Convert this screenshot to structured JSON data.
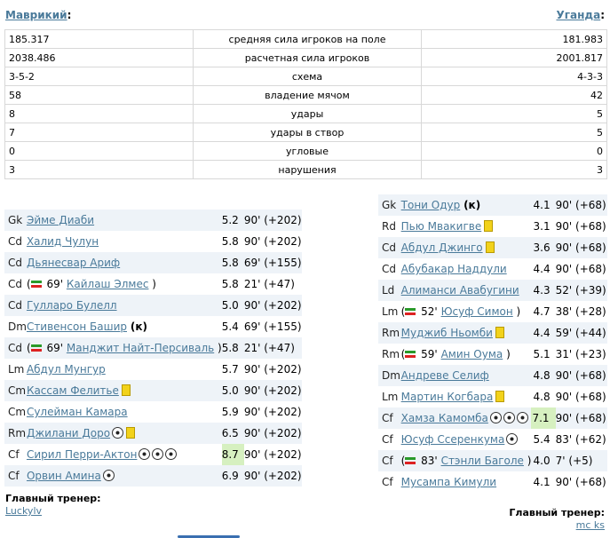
{
  "header": {
    "home_team": "Маврикий",
    "away_team": "Уганда",
    "colon": ":"
  },
  "stats": [
    {
      "home": "185.317",
      "label": "средняя сила игроков на поле",
      "away": "181.983"
    },
    {
      "home": "2038.486",
      "label": "расчетная сила игроков",
      "away": "2001.817"
    },
    {
      "home": "3-5-2",
      "label": "схема",
      "away": "4-3-3"
    },
    {
      "home": "58",
      "label": "владение мячом",
      "away": "42"
    },
    {
      "home": "8",
      "label": "удары",
      "away": "5"
    },
    {
      "home": "7",
      "label": "удары в створ",
      "away": "5"
    },
    {
      "home": "0",
      "label": "угловые",
      "away": "0"
    },
    {
      "home": "3",
      "label": "нарушения",
      "away": "3"
    }
  ],
  "home_lineup": [
    {
      "pos": "Gk",
      "name": "Эйме Диаби",
      "rating": "5.2",
      "minutes": "90' (+202)"
    },
    {
      "pos": "Cd",
      "name": "Халид Чулун",
      "rating": "5.8",
      "minutes": "90' (+202)"
    },
    {
      "pos": "Cd",
      "name": "Дьянесвар Ариф",
      "rating": "5.8",
      "minutes": "69' (+155)"
    },
    {
      "pos": "Cd",
      "sub_minute": "69'",
      "name": "Кайлаш Элмес",
      "rating": "5.8",
      "minutes": "21' (+47)"
    },
    {
      "pos": "Cd",
      "name": "Гулларо Булелл",
      "rating": "5.0",
      "minutes": "90' (+202)"
    },
    {
      "pos": "Dm",
      "name": "Стивенсон Башир",
      "captain": "(к)",
      "rating": "5.4",
      "minutes": "69' (+155)"
    },
    {
      "pos": "Cd",
      "sub_minute": "69'",
      "name": "Манджит Найт-Персиваль",
      "rating": "5.8",
      "minutes": "21' (+47)"
    },
    {
      "pos": "Lm",
      "name": "Абдул Мунгур",
      "rating": "5.7",
      "minutes": "90' (+202)"
    },
    {
      "pos": "Cm",
      "name": "Кассам Фелитье",
      "yellow": true,
      "rating": "5.0",
      "minutes": "90' (+202)"
    },
    {
      "pos": "Cm",
      "name": "Сулейман Камара",
      "rating": "5.9",
      "minutes": "90' (+202)"
    },
    {
      "pos": "Rm",
      "name": "Джилани Доро",
      "goals": 1,
      "yellow": true,
      "rating": "6.5",
      "minutes": "90' (+202)"
    },
    {
      "pos": "Cf",
      "name": "Сирил Перри-Актон",
      "goals": 3,
      "rating": "8.7",
      "highlight": true,
      "minutes": "90' (+202)"
    },
    {
      "pos": "Cf",
      "name": "Орвин Амина",
      "goals": 1,
      "rating": "6.9",
      "minutes": "90' (+202)"
    }
  ],
  "away_lineup": [
    {
      "pos": "Gk",
      "name": "Тони Одур",
      "captain": "(к)",
      "rating": "4.1",
      "minutes": "90' (+68)"
    },
    {
      "pos": "Rd",
      "name": "Пью Мвакигве",
      "yellow": true,
      "rating": "3.1",
      "minutes": "90' (+68)"
    },
    {
      "pos": "Cd",
      "name": "Абдул Джинго",
      "yellow": true,
      "rating": "3.6",
      "minutes": "90' (+68)"
    },
    {
      "pos": "Cd",
      "name": "Абубакар Наддули",
      "rating": "4.4",
      "minutes": "90' (+68)"
    },
    {
      "pos": "Ld",
      "name": "Алиманси Авабугини",
      "rating": "4.3",
      "minutes": "52' (+39)"
    },
    {
      "pos": "Lm",
      "sub_minute": "52'",
      "name": "Юсуф Симон",
      "rating": "4.7",
      "minutes": "38' (+28)"
    },
    {
      "pos": "Rm",
      "name": "Муджиб Ньомби",
      "yellow": true,
      "rating": "4.4",
      "minutes": "59' (+44)"
    },
    {
      "pos": "Rm",
      "sub_minute": "59'",
      "name": "Амин Оума",
      "rating": "5.1",
      "minutes": "31' (+23)"
    },
    {
      "pos": "Dm",
      "name": "Андреве Селиф",
      "rating": "4.8",
      "minutes": "90' (+68)"
    },
    {
      "pos": "Lm",
      "name": "Мартин Когбара",
      "yellow": true,
      "rating": "4.8",
      "minutes": "90' (+68)"
    },
    {
      "pos": "Cf",
      "name": "Хамза Камомба",
      "goals": 3,
      "rating": "7.1",
      "highlight": true,
      "minutes": "90' (+68)"
    },
    {
      "pos": "Cf",
      "name": "Юсуф Ссеренкума",
      "goals": 1,
      "rating": "5.4",
      "minutes": "83' (+62)"
    },
    {
      "pos": "Cf",
      "sub_minute": "83'",
      "name": "Стэнли Баголе",
      "rating": "4.0",
      "minutes": "7' (+5)"
    },
    {
      "pos": "Cf",
      "name": "Мусампа Кимули",
      "rating": "4.1",
      "minutes": "90' (+68)"
    }
  ],
  "home_coach": {
    "label": "Главный тренер:",
    "name": "Luckylv"
  },
  "away_coach": {
    "label": "Главный тренер:",
    "name": "mc ks"
  }
}
